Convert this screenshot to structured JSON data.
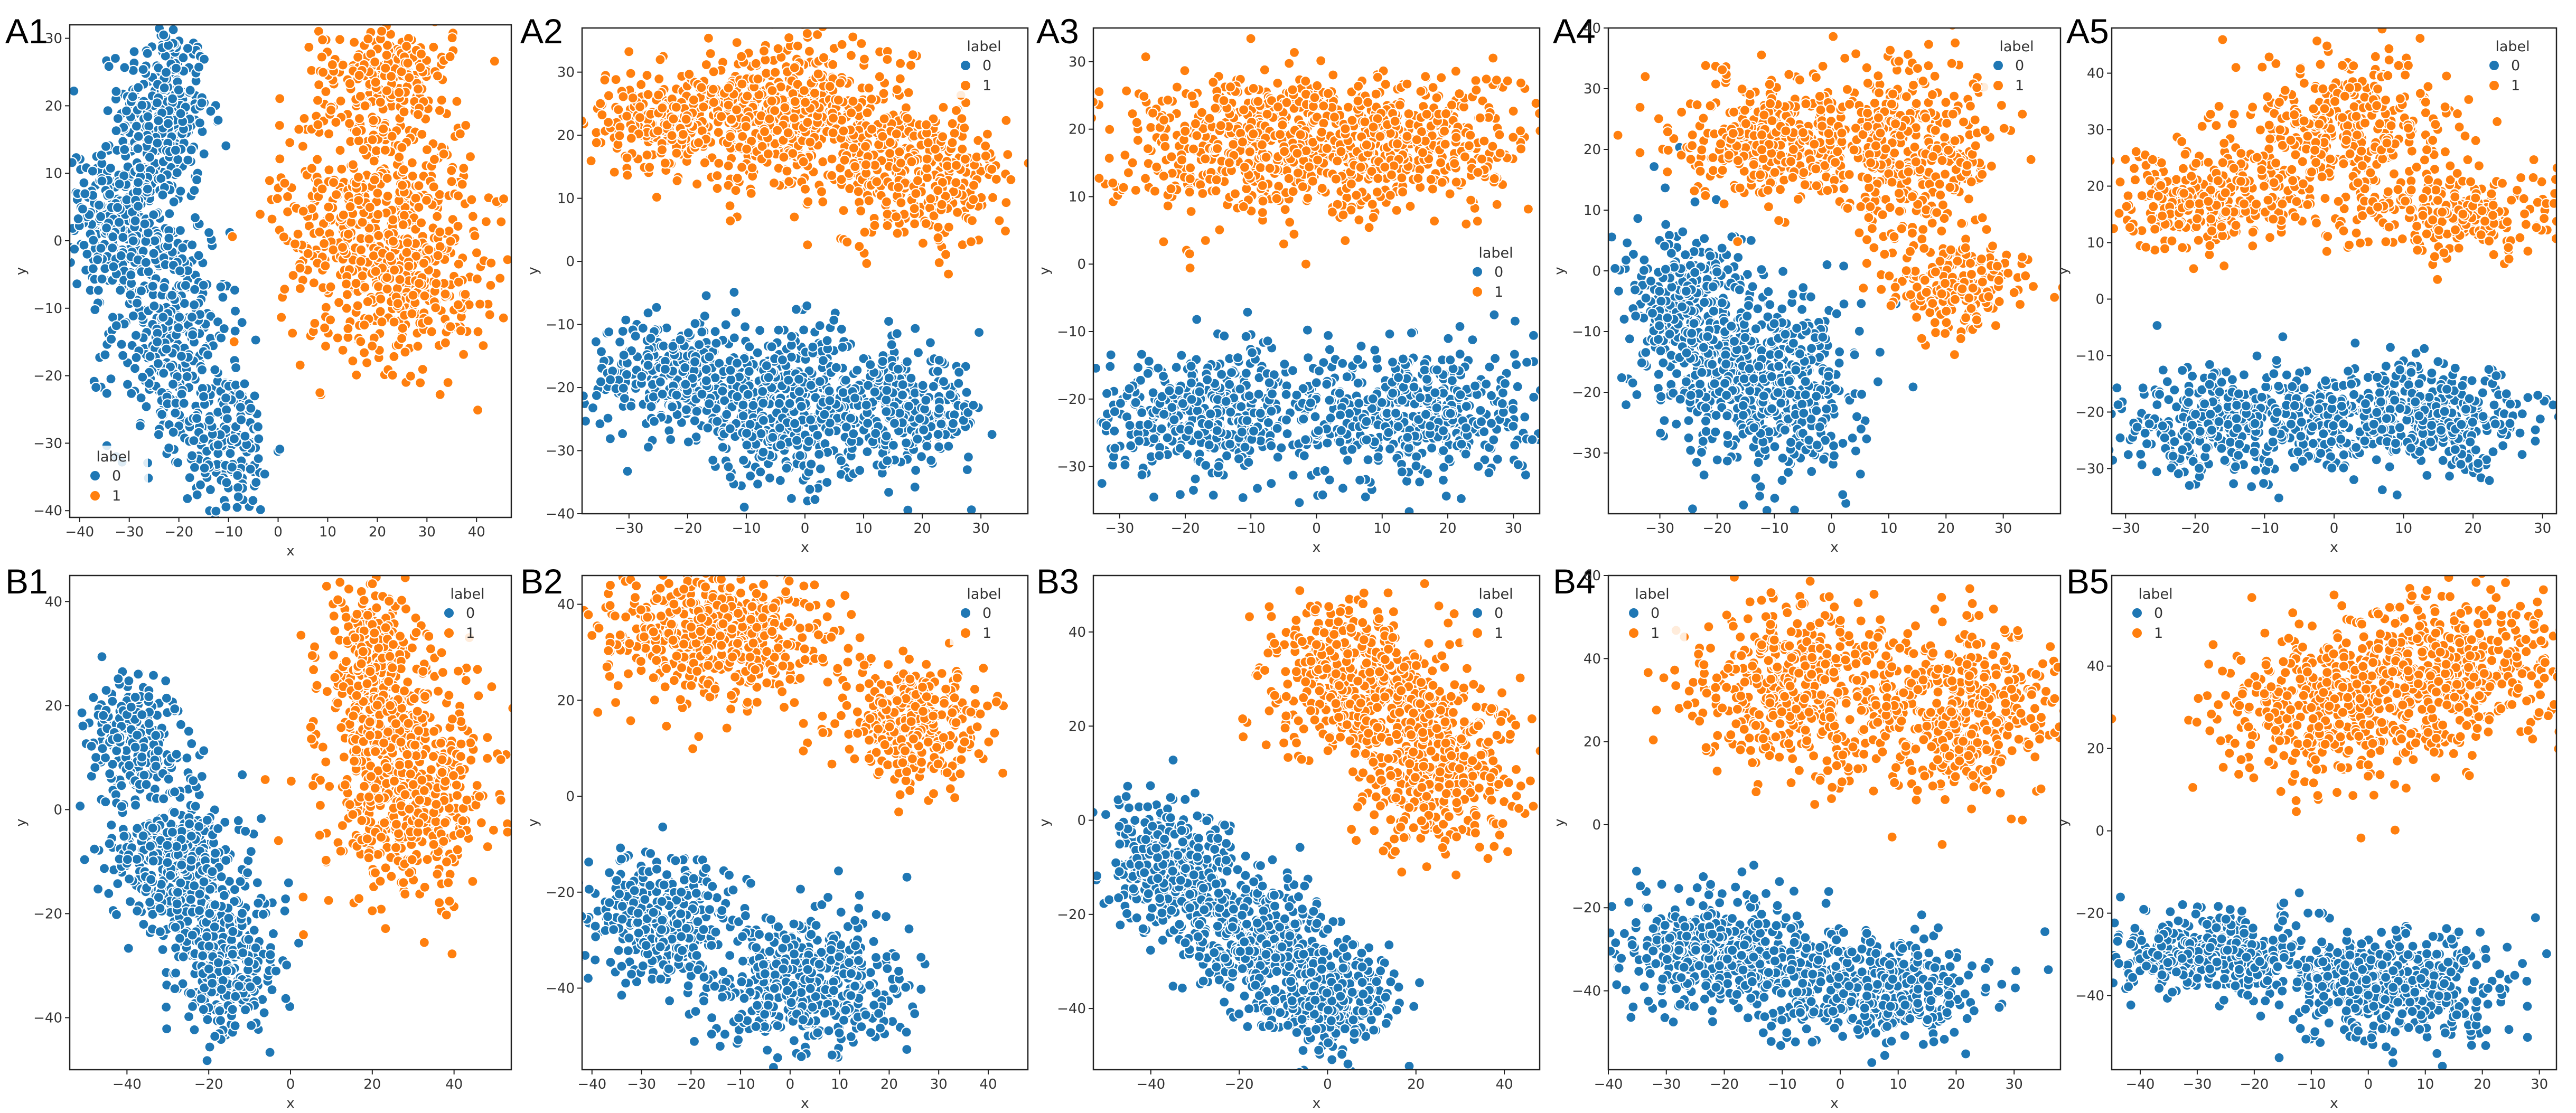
{
  "colors": {
    "label_0": "#1f77b4",
    "label_1": "#ff7f0e",
    "edge": "#ffffff",
    "axis": "#222222"
  },
  "chart_data": [
    {
      "panel": "A1",
      "type": "scatter",
      "xlabel": "x",
      "ylabel": "y",
      "xlim": [
        -42,
        47
      ],
      "ylim": [
        -41,
        32
      ],
      "xticks": [
        -40,
        -30,
        -20,
        -10,
        0,
        10,
        20,
        30,
        40
      ],
      "yticks": [
        -40,
        -30,
        -20,
        -10,
        0,
        10,
        20,
        30
      ],
      "legend": {
        "title": "label",
        "entries": [
          "0",
          "1"
        ],
        "position": "lower-left"
      },
      "series": [
        {
          "name": "0",
          "blobs": [
            [
              -23,
              19,
              6,
              9,
              300
            ],
            [
              -32,
              3,
              7,
              7,
              300
            ],
            [
              -22,
              -13,
              8,
              12,
              350
            ],
            [
              -10,
              -30,
              6,
              7,
              180
            ]
          ]
        },
        {
          "name": "1",
          "blobs": [
            [
              22,
              25,
              9,
              5,
              200
            ],
            [
              20,
              3,
              13,
              13,
              600
            ],
            [
              28,
              -8,
              10,
              6,
              150
            ]
          ]
        }
      ]
    },
    {
      "panel": "A2",
      "type": "scatter",
      "xlabel": "x",
      "ylabel": "y",
      "xlim": [
        -38,
        38
      ],
      "ylim": [
        -40,
        37
      ],
      "xticks": [
        -30,
        -20,
        -10,
        0,
        10,
        20,
        30
      ],
      "yticks": [
        -40,
        -30,
        -20,
        -10,
        0,
        10,
        20,
        30
      ],
      "legend": {
        "title": "label",
        "entries": [
          "0",
          "1"
        ],
        "position": "upper-right"
      },
      "series": [
        {
          "name": "0",
          "blobs": [
            [
              -22,
              -18,
              10,
              6,
              300
            ],
            [
              -3,
              -23,
              12,
              8,
              450
            ],
            [
              16,
              -24,
              10,
              6,
              300
            ]
          ]
        },
        {
          "name": "1",
          "blobs": [
            [
              -22,
              22,
              12,
              5,
              300
            ],
            [
              0,
              23,
              12,
              8,
              500
            ],
            [
              20,
              13,
              10,
              7,
              300
            ]
          ]
        }
      ]
    },
    {
      "panel": "A3",
      "type": "scatter",
      "xlabel": "x",
      "ylabel": "y",
      "xlim": [
        -34,
        34
      ],
      "ylim": [
        -37,
        35
      ],
      "xticks": [
        -30,
        -20,
        -10,
        0,
        10,
        20,
        30
      ],
      "yticks": [
        -30,
        -20,
        -10,
        0,
        10,
        20,
        30
      ],
      "legend": {
        "title": "label",
        "entries": [
          "0",
          "1"
        ],
        "position": "center-right"
      },
      "series": [
        {
          "name": "0",
          "blobs": [
            [
              -17,
              -22,
              12,
              6,
              420
            ],
            [
              15,
              -22,
              12,
              7,
              480
            ]
          ]
        },
        {
          "name": "1",
          "blobs": [
            [
              -12,
              18,
              14,
              7,
              450
            ],
            [
              12,
              18,
              14,
              7,
              450
            ]
          ]
        }
      ]
    },
    {
      "panel": "A4",
      "type": "scatter",
      "xlabel": "x",
      "ylabel": "y",
      "xlim": [
        -39,
        40
      ],
      "ylim": [
        -40,
        40
      ],
      "xticks": [
        -30,
        -20,
        -10,
        0,
        10,
        20,
        30
      ],
      "yticks": [
        -30,
        -20,
        -10,
        0,
        10,
        20,
        30,
        40
      ],
      "legend": {
        "title": "label",
        "entries": [
          "0",
          "1"
        ],
        "position": "upper-right"
      },
      "series": [
        {
          "name": "0",
          "blobs": [
            [
              -24,
              -8,
              8,
              10,
              400
            ],
            [
              -10,
              -20,
              10,
              10,
              450
            ]
          ]
        },
        {
          "name": "1",
          "blobs": [
            [
              -8,
              22,
              12,
              7,
              400
            ],
            [
              15,
              20,
              10,
              10,
              350
            ],
            [
              22,
              -3,
              8,
              5,
              200
            ]
          ]
        }
      ]
    },
    {
      "panel": "A5",
      "type": "scatter",
      "xlabel": "x",
      "ylabel": "y",
      "xlim": [
        -32,
        32
      ],
      "ylim": [
        -38,
        48
      ],
      "xticks": [
        -30,
        -20,
        -10,
        0,
        10,
        20,
        30
      ],
      "yticks": [
        -30,
        -20,
        -10,
        0,
        10,
        20,
        30,
        40
      ],
      "legend": {
        "title": "label",
        "entries": [
          "0",
          "1"
        ],
        "position": "upper-right"
      },
      "series": [
        {
          "name": "0",
          "blobs": [
            [
              -15,
              -22,
              12,
              6,
              420
            ],
            [
              12,
              -21,
              12,
              6,
              450
            ]
          ]
        },
        {
          "name": "1",
          "blobs": [
            [
              -18,
              18,
              10,
              6,
              300
            ],
            [
              2,
              30,
              10,
              9,
              350
            ],
            [
              18,
              15,
              10,
              5,
              250
            ]
          ]
        }
      ]
    },
    {
      "panel": "B1",
      "type": "scatter",
      "xlabel": "x",
      "ylabel": "y",
      "xlim": [
        -54,
        54
      ],
      "ylim": [
        -50,
        45
      ],
      "xticks": [
        -40,
        -20,
        0,
        20,
        40
      ],
      "yticks": [
        -40,
        -20,
        0,
        20,
        40
      ],
      "legend": {
        "title": "label",
        "entries": [
          "0",
          "1"
        ],
        "position": "upper-right"
      },
      "series": [
        {
          "name": "0",
          "blobs": [
            [
              -38,
              14,
              7,
              7,
              250
            ],
            [
              -28,
              -10,
              10,
              10,
              400
            ],
            [
              -15,
              -30,
              8,
              9,
              300
            ]
          ]
        },
        {
          "name": "1",
          "blobs": [
            [
              20,
              28,
              8,
              10,
              250
            ],
            [
              28,
              5,
              13,
              14,
              600
            ]
          ]
        }
      ]
    },
    {
      "panel": "B2",
      "type": "scatter",
      "xlabel": "x",
      "ylabel": "y",
      "xlim": [
        -42,
        48
      ],
      "ylim": [
        -57,
        46
      ],
      "xticks": [
        -40,
        -30,
        -20,
        -10,
        0,
        10,
        20,
        30,
        40
      ],
      "yticks": [
        -40,
        -20,
        0,
        20,
        40
      ],
      "legend": {
        "title": "label",
        "entries": [
          "0",
          "1"
        ],
        "position": "upper-right"
      },
      "series": [
        {
          "name": "0",
          "blobs": [
            [
              -25,
              -25,
              10,
              9,
              350
            ],
            [
              3,
              -40,
              13,
              10,
              500
            ]
          ]
        },
        {
          "name": "1",
          "blobs": [
            [
              -15,
              33,
              16,
              9,
              550
            ],
            [
              25,
              15,
              10,
              9,
              350
            ]
          ]
        }
      ]
    },
    {
      "panel": "B3",
      "type": "scatter",
      "xlabel": "x",
      "ylabel": "y",
      "xlim": [
        -53,
        48
      ],
      "ylim": [
        -53,
        52
      ],
      "xticks": [
        -40,
        -20,
        0,
        20,
        40
      ],
      "yticks": [
        -40,
        -20,
        0,
        20,
        40
      ],
      "legend": {
        "title": "label",
        "entries": [
          "0",
          "1"
        ],
        "position": "upper-right"
      },
      "series": [
        {
          "name": "0",
          "blobs": [
            [
              -35,
              -10,
              10,
              9,
              350
            ],
            [
              -15,
              -25,
              12,
              9,
              400
            ],
            [
              0,
              -38,
              10,
              7,
              300
            ]
          ]
        },
        {
          "name": "1",
          "blobs": [
            [
              5,
              30,
              12,
              11,
              450
            ],
            [
              25,
              12,
              12,
              12,
              450
            ]
          ]
        }
      ]
    },
    {
      "panel": "B4",
      "type": "scatter",
      "xlabel": "x",
      "ylabel": "y",
      "xlim": [
        -40,
        38
      ],
      "ylim": [
        -59,
        60
      ],
      "xticks": [
        -40,
        -30,
        -20,
        -10,
        0,
        10,
        20,
        30
      ],
      "yticks": [
        -40,
        -20,
        0,
        20,
        40,
        60
      ],
      "legend": {
        "title": "label",
        "entries": [
          "0",
          "1"
        ],
        "position": "upper-left"
      },
      "series": [
        {
          "name": "0",
          "blobs": [
            [
              -20,
              -30,
              12,
              9,
              450
            ],
            [
              5,
              -40,
              12,
              8,
              450
            ]
          ]
        },
        {
          "name": "1",
          "blobs": [
            [
              -8,
              33,
              12,
              14,
              500
            ],
            [
              20,
              28,
              12,
              14,
              450
            ]
          ]
        }
      ]
    },
    {
      "panel": "B5",
      "type": "scatter",
      "xlabel": "x",
      "ylabel": "y",
      "xlim": [
        -45,
        33
      ],
      "ylim": [
        -58,
        62
      ],
      "xticks": [
        -40,
        -30,
        -20,
        -10,
        0,
        10,
        20,
        30
      ],
      "yticks": [
        -40,
        -20,
        0,
        20,
        40
      ],
      "legend": {
        "title": "label",
        "entries": [
          "0",
          "1"
        ],
        "position": "upper-left"
      },
      "series": [
        {
          "name": "0",
          "blobs": [
            [
              -28,
              -30,
              12,
              7,
              420
            ],
            [
              5,
              -38,
              13,
              9,
              480
            ]
          ]
        },
        {
          "name": "1",
          "blobs": [
            [
              -8,
              30,
              12,
              12,
              450
            ],
            [
              15,
              38,
              12,
              14,
              450
            ]
          ]
        }
      ]
    }
  ]
}
